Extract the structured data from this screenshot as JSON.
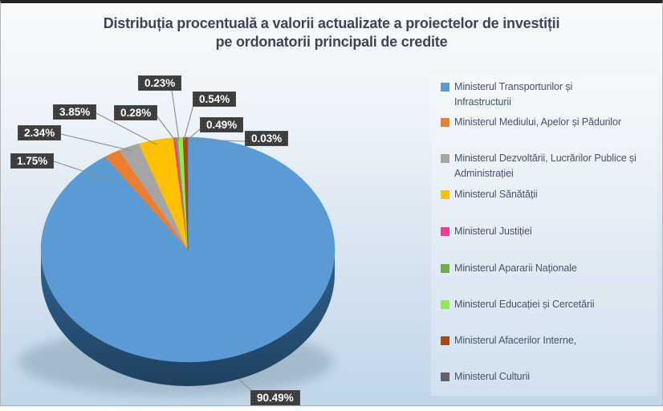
{
  "chart_data": {
    "type": "pie",
    "style": "3d-pie",
    "title": "Distribuția procentuală a valorii actualizate a proiectelor de investiții pe ordonatorii principali de credite",
    "title_line1": "Distribuția procentuală a valorii actualizate a proiectelor de investiții",
    "title_line2": "pe ordonatorii principali de credite",
    "legend_position": "right",
    "label_format": "percent",
    "slices": [
      {
        "name": "Ministerul Transporturilor și Infrastructurii",
        "legend_lines": [
          "Ministerul Transporturilor și",
          "Infrastructurii"
        ],
        "value": 90.49,
        "label": "90.49%",
        "color": "#5B9BD5"
      },
      {
        "name": "Ministerul Mediului, Apelor și Pădurilor",
        "legend_lines": [
          "Ministerul Mediului, Apelor și Pădurilor"
        ],
        "value": 1.75,
        "label": "1.75%",
        "color": "#ED7D31"
      },
      {
        "name": "Ministerul Dezvoltării, Lucrărilor Publice și Administrației",
        "legend_lines": [
          "Ministerul Dezvoltării, Lucrărilor Publice și",
          "Administrației"
        ],
        "value": 2.34,
        "label": "2.34%",
        "color": "#A5A5A5"
      },
      {
        "name": "Ministerul Sănătății",
        "legend_lines": [
          "Ministerul Sănătății"
        ],
        "value": 3.85,
        "label": "3.85%",
        "color": "#FFC000"
      },
      {
        "name": "Ministerul Justiției",
        "legend_lines": [
          "Ministerul Justiției"
        ],
        "value": 0.28,
        "label": "0.28%",
        "color": "#FA3A99"
      },
      {
        "name": "Ministerul Apararii Naționale",
        "legend_lines": [
          "Ministerul Apararii Naționale"
        ],
        "value": 0.23,
        "label": "0.23%",
        "color": "#70AD47"
      },
      {
        "name": "Ministerul Educației și Cercetării",
        "legend_lines": [
          "Ministerul Educației și Cercetării"
        ],
        "value": 0.54,
        "label": "0.54%",
        "color": "#8DE957"
      },
      {
        "name": "Ministerul Afacerilor Interne,",
        "legend_lines": [
          "Ministerul Afacerilor Interne,"
        ],
        "value": 0.49,
        "label": "0.49%",
        "color": "#A74B10"
      },
      {
        "name": "Ministerul Culturii",
        "legend_lines": [
          "Ministerul Culturii"
        ],
        "value": 0.03,
        "label": "0.03%",
        "color": "#636363"
      }
    ],
    "colors": {
      "pie_side_top": "#31628E",
      "pie_side_bottom": "#1E4160",
      "shadow": "#6F879C",
      "background_top": "#F8FBFD",
      "background_bottom": "#C0D6E9",
      "title_text": "#3F4456",
      "legend_text": "#44546A",
      "label_box_bg": "#3A3A3A",
      "label_box_text": "#FFFFFF",
      "leader_line": "#8C8C8C",
      "frame_top_border": "#232323"
    }
  }
}
